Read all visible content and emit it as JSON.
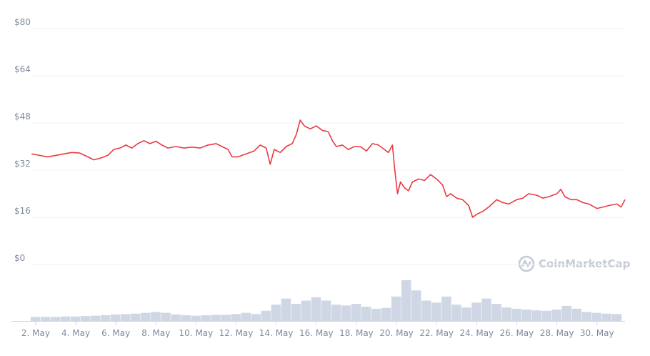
{
  "chart_data": {
    "type": "line",
    "watermark": "CoinMarketCap",
    "xlim": [
      1.79,
      31.4
    ],
    "xticks": [
      {
        "value": 2,
        "label": "2. May"
      },
      {
        "value": 4,
        "label": "4. May"
      },
      {
        "value": 6,
        "label": "6. May"
      },
      {
        "value": 8,
        "label": "8. May"
      },
      {
        "value": 10,
        "label": "10. May"
      },
      {
        "value": 12,
        "label": "12. May"
      },
      {
        "value": 14,
        "label": "14. May"
      },
      {
        "value": 16,
        "label": "16. May"
      },
      {
        "value": 18,
        "label": "18. May"
      },
      {
        "value": 20,
        "label": "20. May"
      },
      {
        "value": 22,
        "label": "22. May"
      },
      {
        "value": 24,
        "label": "24. May"
      },
      {
        "value": 26,
        "label": "26. May"
      },
      {
        "value": 28,
        "label": "28. May"
      },
      {
        "value": 30,
        "label": "30. May"
      }
    ],
    "ylim": [
      0,
      80
    ],
    "yticks": [
      {
        "value": 0,
        "label": "$0"
      },
      {
        "value": 16,
        "label": "$16"
      },
      {
        "value": 32,
        "label": "$32"
      },
      {
        "value": 48,
        "label": "$48"
      },
      {
        "value": 64,
        "label": "$64"
      },
      {
        "value": 80,
        "label": "$80"
      }
    ],
    "y2lim": [
      0,
      100
    ],
    "grid": true,
    "series": [
      {
        "color": "#ea3943",
        "x": [
          1.8,
          2.2,
          2.6,
          3.0,
          3.4,
          3.8,
          4.2,
          4.6,
          4.9,
          5.2,
          5.6,
          5.9,
          6.2,
          6.5,
          6.8,
          7.1,
          7.4,
          7.7,
          8.0,
          8.3,
          8.6,
          9.0,
          9.4,
          9.8,
          10.2,
          10.6,
          11.0,
          11.3,
          11.6,
          11.8,
          12.1,
          12.5,
          12.9,
          13.2,
          13.5,
          13.7,
          13.9,
          14.2,
          14.5,
          14.8,
          15.0,
          15.2,
          15.4,
          15.7,
          16.0,
          16.3,
          16.6,
          16.8,
          17.0,
          17.3,
          17.6,
          17.9,
          18.2,
          18.5,
          18.8,
          19.1,
          19.4,
          19.6,
          19.8,
          19.9,
          20.05,
          20.2,
          20.4,
          20.6,
          20.8,
          21.1,
          21.4,
          21.7,
          22.0,
          22.3,
          22.5,
          22.7,
          23.0,
          23.3,
          23.6,
          23.8,
          24.0,
          24.3,
          24.6,
          25.0,
          25.3,
          25.6,
          26.0,
          26.3,
          26.6,
          27.0,
          27.3,
          27.6,
          28.0,
          28.2,
          28.4,
          28.7,
          29.0,
          29.3,
          29.6,
          30.0,
          30.3,
          30.6,
          31.0,
          31.2,
          31.4
        ],
        "values": [
          37.5,
          37,
          36.5,
          37,
          37.5,
          38,
          37.8,
          36.5,
          35.5,
          36,
          37,
          39,
          39.5,
          40.5,
          39.5,
          41,
          42,
          41,
          41.8,
          40.5,
          39.5,
          40,
          39.5,
          39.8,
          39.5,
          40.5,
          41,
          40,
          39,
          36.5,
          36.5,
          37.5,
          38.5,
          40.5,
          39.5,
          34,
          39,
          38,
          40,
          41,
          44,
          49,
          47,
          46,
          47,
          45.5,
          45,
          42,
          40,
          40.5,
          39,
          40,
          40,
          38.5,
          41,
          40.5,
          39,
          38,
          40.5,
          33,
          24,
          28,
          26,
          25,
          28,
          29,
          28.5,
          30.5,
          29,
          27,
          23,
          24,
          22.5,
          22,
          20,
          16,
          17,
          18,
          19.5,
          22,
          21,
          20.5,
          22,
          22.5,
          24,
          23.5,
          22.5,
          23,
          24,
          25.5,
          23,
          22,
          22,
          21,
          20.5,
          19,
          19.5,
          20,
          20.5,
          19.5,
          22
        ]
      },
      {
        "color": "#cfd6e4",
        "axis": "y2",
        "type": "bar",
        "x": [
          2.0,
          2.5,
          3.0,
          3.5,
          4.0,
          4.5,
          5.0,
          5.5,
          6.0,
          6.5,
          7.0,
          7.5,
          8.0,
          8.5,
          9.0,
          9.5,
          10.0,
          10.5,
          11.0,
          11.5,
          12.0,
          12.5,
          13.0,
          13.5,
          14.0,
          14.5,
          15.0,
          15.5,
          16.0,
          16.5,
          17.0,
          17.5,
          18.0,
          18.5,
          19.0,
          19.5,
          20.0,
          20.5,
          21.0,
          21.5,
          22.0,
          22.5,
          23.0,
          23.5,
          24.0,
          24.5,
          25.0,
          25.5,
          26.0,
          26.5,
          27.0,
          27.5,
          28.0,
          28.5,
          29.0,
          29.5,
          30.0,
          30.5,
          31.0
        ],
        "values": [
          10,
          10,
          10,
          11,
          11,
          12,
          13,
          14,
          16,
          17,
          18,
          20,
          22,
          20,
          16,
          14,
          13,
          14,
          15,
          15,
          17,
          20,
          17,
          25,
          40,
          55,
          42,
          50,
          58,
          50,
          40,
          38,
          42,
          35,
          30,
          32,
          60,
          100,
          75,
          50,
          45,
          60,
          40,
          33,
          45,
          55,
          42,
          33,
          30,
          28,
          26,
          25,
          28,
          37,
          30,
          22,
          20,
          18,
          17
        ]
      }
    ]
  }
}
